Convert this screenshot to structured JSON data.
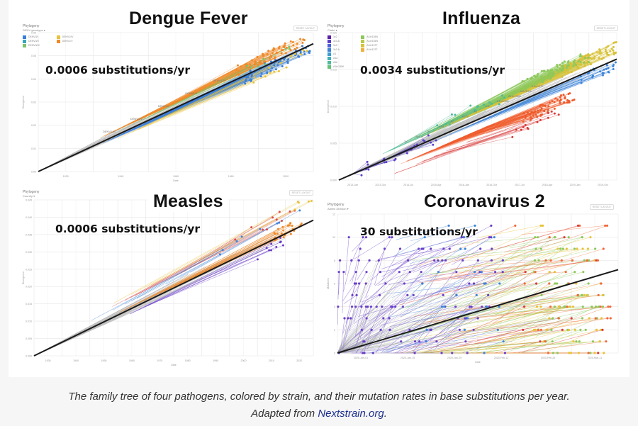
{
  "caption": {
    "line1": "The family tree of four pathogens, colored by strain, and their mutation rates in base substitutions per year.",
    "line2_prefix": "Adapted from ",
    "link_text": "Nextstrain.org",
    "line2_suffix": "."
  },
  "ui": {
    "phylogeny_label": "Phylogeny",
    "reset_layout": "RESET LAYOUT"
  },
  "colors": {
    "regression_line": "#1a1a1a",
    "link": "#1d2f8e"
  },
  "chart_data": [
    {
      "type": "scatter",
      "title": "Dengue Fever",
      "annotation": "0.0006 substitutions/yr",
      "color_by": "DENV genotype",
      "legend": [
        {
          "label": "DENV3/I",
          "color": "#3a7fd9"
        },
        {
          "label": "DENV3/II",
          "color": "#3aa6b8"
        },
        {
          "label": "DENV3/III",
          "color": "#7cc46a"
        },
        {
          "label": "DENV1/IV",
          "color": "#e8c23a"
        },
        {
          "label": "DENV1/V",
          "color": "#ef8a2a"
        }
      ],
      "branch_labels": [
        "DENV1/III",
        "DENV1/V",
        "DENV1/I",
        "DENV1/II",
        "DENV1/IV"
      ],
      "xlabel": "Date",
      "ylabel": "Divergence",
      "x_ticks": [
        "1920",
        "1940",
        "1960",
        "1980",
        "2000"
      ],
      "y_ticks": [
        "0.00",
        "0.01",
        "0.02",
        "0.03",
        "0.04",
        "0.05",
        "0.06"
      ],
      "regression": {
        "start": [
          0.0,
          0.0
        ],
        "end": [
          1.0,
          0.92
        ]
      },
      "clusters": [
        {
          "color": "#ef8a2a",
          "x_range": [
            0.72,
            0.97
          ],
          "y_offset": 0.06,
          "count": 70
        },
        {
          "color": "#3a7fd9",
          "x_range": [
            0.75,
            1.0
          ],
          "y_offset": -0.02,
          "count": 60
        },
        {
          "color": "#e8c23a",
          "x_range": [
            0.78,
            0.98
          ],
          "y_offset": -0.05,
          "count": 14
        },
        {
          "color": "#7cc46a",
          "x_range": [
            0.75,
            0.95
          ],
          "y_offset": 0.04,
          "count": 8
        }
      ]
    },
    {
      "type": "scatter",
      "title": "Influenza",
      "annotation": "0.0034 substitutions/yr",
      "color_by": "Clade",
      "legend": [
        {
          "label": "3c2",
          "color": "#5b1fa8"
        },
        {
          "label": "3c3.A",
          "color": "#5a3fc8"
        },
        {
          "label": "3c3",
          "color": "#4a63d8"
        },
        {
          "label": "3c3.A",
          "color": "#3d84d8"
        },
        {
          "label": "A1",
          "color": "#3b9ed0"
        },
        {
          "label": "A1a",
          "color": "#3fb0b8"
        },
        {
          "label": "A1b",
          "color": "#4dbb98"
        },
        {
          "label": "A1b/135K",
          "color": "#66c27a"
        },
        {
          "label": "A1b/135N",
          "color": "#8dc85a"
        },
        {
          "label": "A1b/135N",
          "color": "#b5ca45"
        },
        {
          "label": "A1b/137F",
          "color": "#d8c23a"
        },
        {
          "label": "A1b/137F",
          "color": "#ecb23a"
        }
      ],
      "branch_labels": [
        "3c2",
        "3c3.A",
        "A1",
        "A1a",
        "A2",
        "A2/re",
        "A3",
        "A1b",
        "A1b/135K",
        "A1b/135N",
        "A1b/131K",
        "A1b/137F"
      ],
      "xlabel": "Date",
      "ylabel": "Divergence",
      "x_ticks": [
        "2013-Jan",
        "2013-Oct",
        "2014-Jul",
        "2015-Apr",
        "2016-Jan",
        "2016-Oct",
        "2017-Jul",
        "2018-Apr",
        "2019-Jan",
        "2019-Oct"
      ],
      "y_ticks": [
        "0.000",
        "0.005",
        "0.010",
        "0.015",
        "0.020"
      ],
      "regression": {
        "start": [
          0.0,
          0.0
        ],
        "end": [
          1.0,
          0.82
        ]
      },
      "clusters": [
        {
          "color": "#d8c23a",
          "x_range": [
            0.78,
            1.0
          ],
          "y_offset": 0.08,
          "count": 90
        },
        {
          "color": "#8dc85a",
          "x_range": [
            0.66,
            0.9
          ],
          "y_offset": 0.1,
          "count": 70
        },
        {
          "color": "#3d84d8",
          "x_range": [
            0.86,
            1.0
          ],
          "y_offset": -0.03,
          "count": 25
        },
        {
          "color": "#ef5a2a",
          "x_range": [
            0.66,
            0.85
          ],
          "y_offset": -0.12,
          "count": 60
        },
        {
          "color": "#d83a3a",
          "x_range": [
            0.6,
            0.82
          ],
          "y_offset": -0.2,
          "count": 14
        },
        {
          "color": "#4dbb98",
          "x_range": [
            0.35,
            0.6
          ],
          "y_offset": 0.08,
          "count": 16
        },
        {
          "color": "#5a3fc8",
          "x_range": [
            0.08,
            0.35
          ],
          "y_offset": 0.0,
          "count": 22
        }
      ]
    },
    {
      "type": "scatter",
      "title": "Measles",
      "annotation": "0.0006 substitutions/yr",
      "color_by": "Country",
      "xlabel": "Date",
      "ylabel": "Divergence",
      "x_ticks": [
        "1930",
        "1940",
        "1950",
        "1960",
        "1970",
        "1980",
        "1990",
        "2000",
        "2010",
        "2020"
      ],
      "y_ticks": [
        "0.000",
        "0.005",
        "0.010",
        "0.015",
        "0.020",
        "0.025",
        "0.030",
        "0.035",
        "0.040",
        "0.045"
      ],
      "regression": {
        "start": [
          0.0,
          0.0
        ],
        "end": [
          1.0,
          0.87
        ]
      },
      "clusters": [
        {
          "color": "#ef8a2a",
          "x_range": [
            0.86,
            0.96
          ],
          "y_offset": 0.02,
          "count": 24
        },
        {
          "color": "#6a3fc8",
          "x_range": [
            0.8,
            0.9
          ],
          "y_offset": -0.05,
          "count": 10
        },
        {
          "color": "#d84a4a",
          "x_range": [
            0.7,
            0.95
          ],
          "y_offset": 0.12,
          "count": 10
        },
        {
          "color": "#3d84d8",
          "x_range": [
            0.6,
            0.98
          ],
          "y_offset": 0.08,
          "count": 8
        },
        {
          "color": "#e8c23a",
          "x_range": [
            0.9,
            1.0
          ],
          "y_offset": 0.15,
          "count": 5
        }
      ]
    },
    {
      "type": "scatter",
      "title": "Coronavirus 2",
      "annotation": "30 substitutions/yr",
      "color_by": "Admin Division",
      "xlabel": "Date",
      "ylabel": "Mutations",
      "x_ticks": [
        "2020-Jan-01",
        "2020-Jan-15",
        "2020-Jan-29",
        "2020-Feb-12",
        "2020-Feb-26",
        "2020-Mar-11"
      ],
      "y_ticks": [
        "0",
        "2",
        "4",
        "6",
        "8",
        "10",
        "12"
      ],
      "ylim": [
        0,
        12
      ],
      "regression": {
        "start": [
          0.0,
          0.0
        ],
        "end": [
          1.0,
          7.2
        ]
      },
      "clusters": [
        {
          "color": "#6a3fc8",
          "x_range": [
            0.0,
            0.6
          ],
          "count": 120
        },
        {
          "color": "#3d84d8",
          "x_range": [
            0.3,
            0.6
          ],
          "count": 30
        },
        {
          "color": "#8dc85a",
          "x_range": [
            0.7,
            0.95
          ],
          "count": 60
        },
        {
          "color": "#e8c23a",
          "x_range": [
            0.7,
            0.95
          ],
          "count": 40
        },
        {
          "color": "#ef6a3a",
          "x_range": [
            0.6,
            0.98
          ],
          "count": 35
        },
        {
          "color": "#d83a3a",
          "x_range": [
            0.65,
            0.95
          ],
          "count": 12
        }
      ]
    }
  ]
}
